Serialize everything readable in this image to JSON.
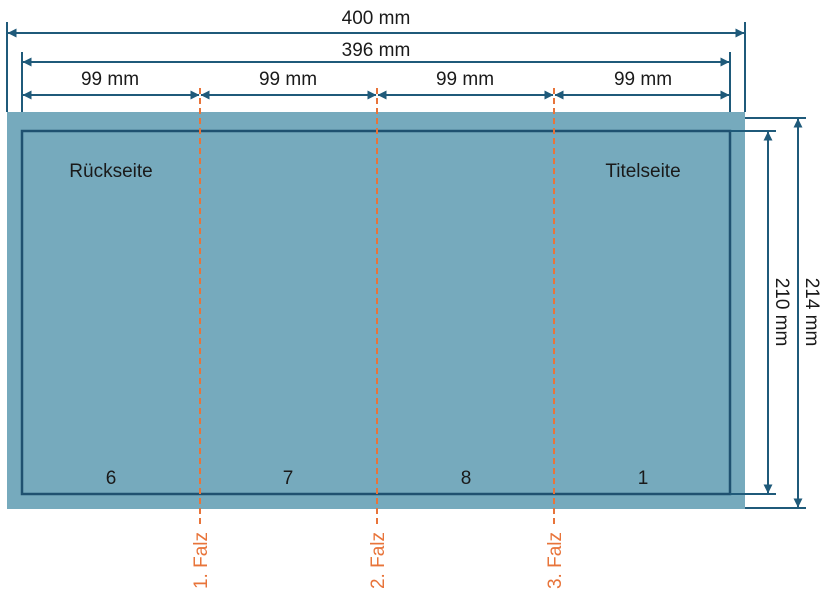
{
  "colors": {
    "paper": "#76aabd",
    "trim_line": "#1f5170",
    "dimension_line": "#1f5a7a",
    "fold_line": "#e8743a",
    "text": "#1a1a1a"
  },
  "dimensions": {
    "total_width": "400 mm",
    "trim_width": "396 mm",
    "panel_widths": [
      "99 mm",
      "99 mm",
      "99 mm",
      "99 mm"
    ],
    "trim_height": "210 mm",
    "total_height": "214 mm"
  },
  "panels": {
    "back_label": "Rückseite",
    "title_label": "Titelseite",
    "page_numbers": [
      "6",
      "7",
      "8",
      "1"
    ]
  },
  "folds": [
    "1. Falz",
    "2. Falz",
    "3. Falz"
  ]
}
